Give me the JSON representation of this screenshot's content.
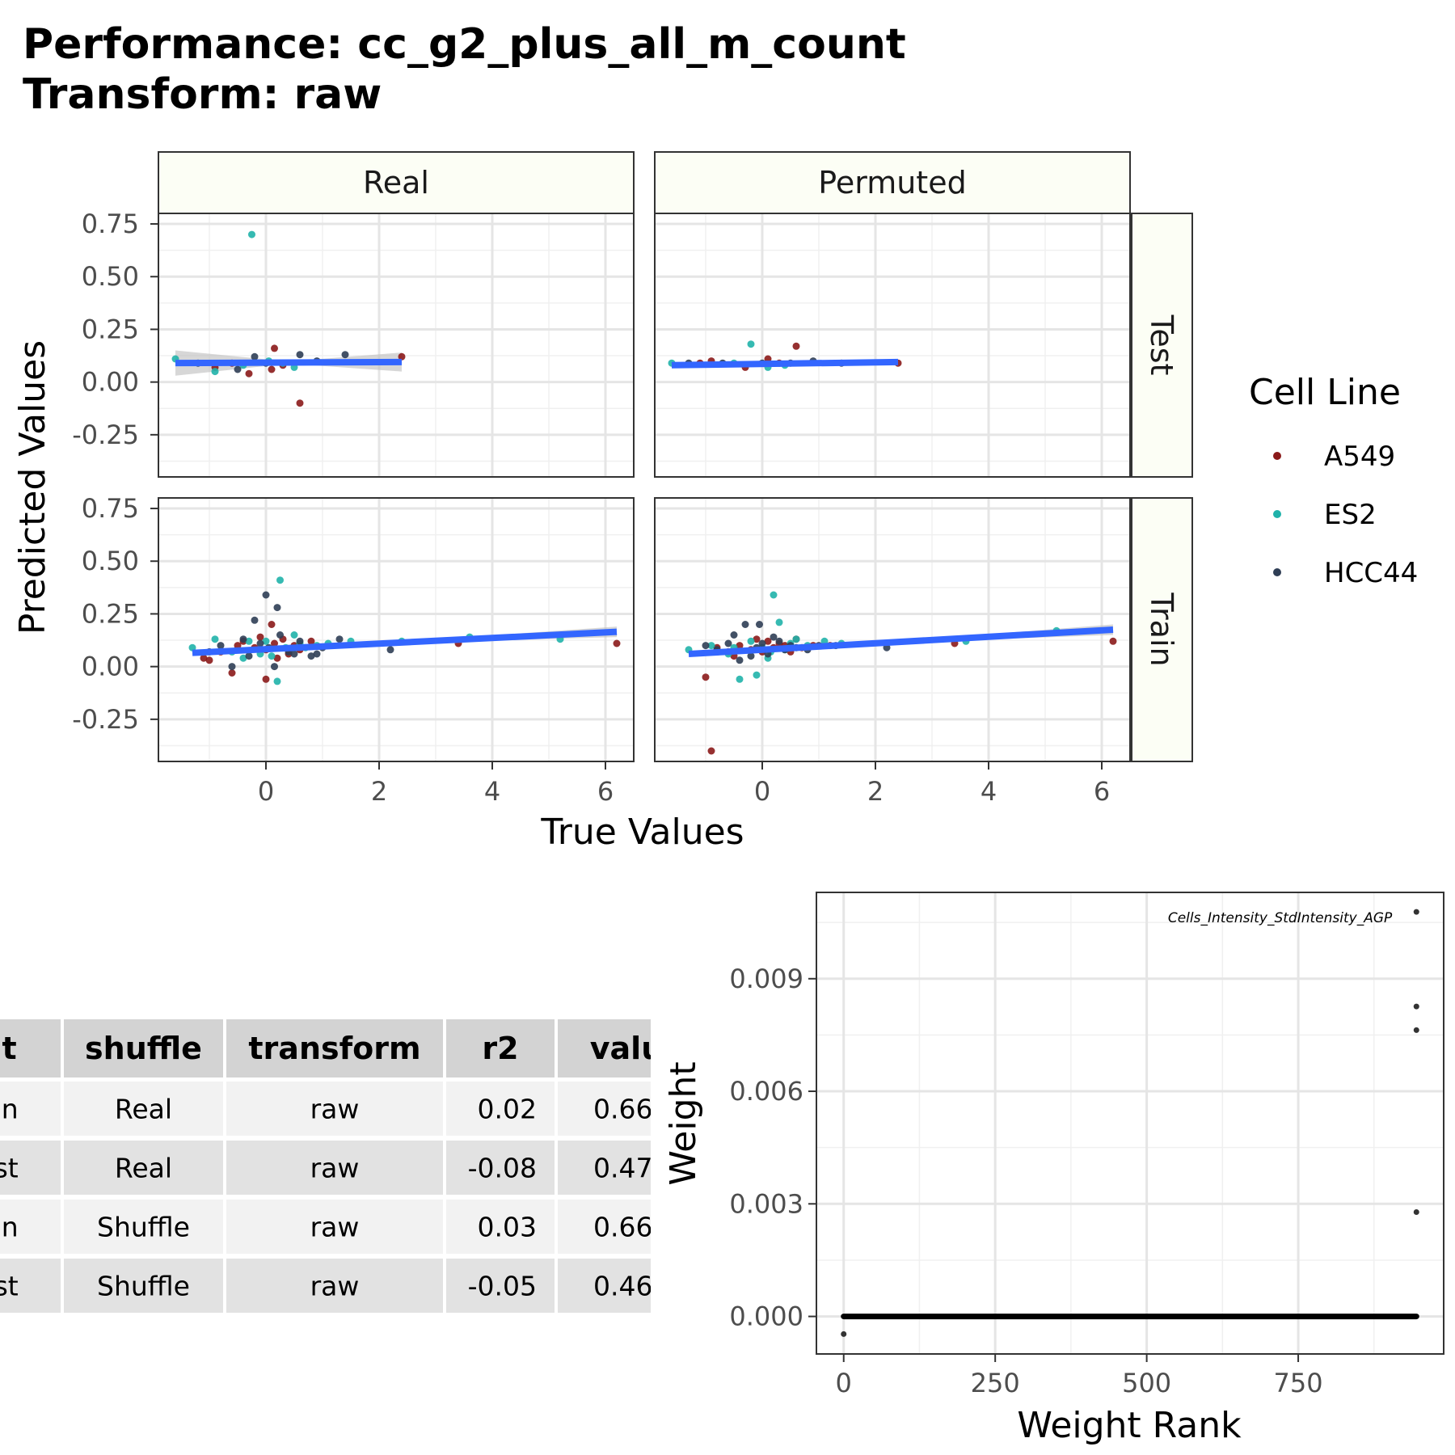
{
  "title_line1": "Performance: cc_g2_plus_all_m_count",
  "title_line2": "Transform: raw",
  "chart_data": [
    {
      "type": "scatter",
      "facets": {
        "columns": [
          "Real",
          "Permuted"
        ],
        "rows": [
          "Test",
          "Train"
        ]
      },
      "xlabel": "True Values",
      "ylabel": "Predicted Values",
      "x_ticks": [
        0,
        2,
        4,
        6
      ],
      "y_ticks": [
        0.75,
        0.5,
        0.25,
        0.0,
        -0.25
      ],
      "y_tick_labels": [
        "0.75",
        "0.50",
        "0.25",
        "0.00",
        "-0.25"
      ],
      "xlim": [
        -1.9,
        6.5
      ],
      "ylim": [
        -0.45,
        0.8
      ],
      "legend": {
        "title": "Cell Line",
        "position": "right",
        "entries": [
          {
            "name": "A549",
            "color": "#8B1A1A"
          },
          {
            "name": "ES2",
            "color": "#20B2AA"
          },
          {
            "name": "HCC44",
            "color": "#2F3E55"
          }
        ]
      },
      "fit_line_color": "#3366FF",
      "confidence_band_color": "#BDBDBD",
      "panels": [
        {
          "shuffle": "Real",
          "split": "Test",
          "fit": {
            "x": [
              -1.6,
              2.4
            ],
            "y": [
              0.09,
              0.095
            ]
          },
          "band_halfwidth": [
            0.06,
            0.005,
            0.045
          ],
          "points": {
            "A549": [
              [
                -0.9,
                0.07
              ],
              [
                -0.3,
                0.04
              ],
              [
                0.1,
                0.06
              ],
              [
                0.15,
                0.16
              ],
              [
                0.6,
                -0.1
              ],
              [
                0.3,
                0.08
              ],
              [
                2.4,
                0.12
              ],
              [
                -0.6,
                0.09
              ]
            ],
            "ES2": [
              [
                -0.25,
                0.7
              ],
              [
                -1.6,
                0.11
              ],
              [
                -0.9,
                0.05
              ],
              [
                0.3,
                0.09
              ],
              [
                0.5,
                0.07
              ],
              [
                0.05,
                0.1
              ],
              [
                -0.4,
                0.08
              ]
            ],
            "HCC44": [
              [
                -0.2,
                0.12
              ],
              [
                0.6,
                0.13
              ],
              [
                1.4,
                0.13
              ],
              [
                -0.5,
                0.06
              ],
              [
                0.0,
                0.09
              ],
              [
                0.9,
                0.1
              ],
              [
                -1.2,
                0.09
              ]
            ]
          }
        },
        {
          "shuffle": "Permuted",
          "split": "Test",
          "fit": {
            "x": [
              -1.6,
              2.4
            ],
            "y": [
              0.08,
              0.095
            ]
          },
          "band_halfwidth": [
            0.012,
            0.003,
            0.01
          ],
          "points": {
            "A549": [
              [
                -0.9,
                0.1
              ],
              [
                -0.3,
                0.07
              ],
              [
                0.1,
                0.11
              ],
              [
                0.6,
                0.17
              ],
              [
                2.4,
                0.09
              ],
              [
                -1.1,
                0.09
              ],
              [
                0.3,
                0.09
              ]
            ],
            "ES2": [
              [
                -0.2,
                0.18
              ],
              [
                -1.6,
                0.09
              ],
              [
                0.1,
                0.07
              ],
              [
                -0.5,
                0.09
              ],
              [
                0.4,
                0.08
              ]
            ],
            "HCC44": [
              [
                -0.7,
                0.09
              ],
              [
                0.0,
                0.09
              ],
              [
                1.4,
                0.09
              ],
              [
                0.5,
                0.09
              ],
              [
                -1.3,
                0.09
              ],
              [
                0.9,
                0.1
              ]
            ]
          }
        },
        {
          "shuffle": "Real",
          "split": "Train",
          "fit": {
            "x": [
              -1.3,
              6.2
            ],
            "y": [
              0.065,
              0.165
            ]
          },
          "band_halfwidth": [
            0.01,
            0.004,
            0.025
          ],
          "points": {
            "A549": [
              [
                -1.0,
                0.03
              ],
              [
                -0.6,
                -0.03
              ],
              [
                0.0,
                -0.06
              ],
              [
                0.1,
                0.2
              ],
              [
                -0.4,
                0.12
              ],
              [
                0.2,
                0.04
              ],
              [
                0.5,
                0.1
              ],
              [
                -0.8,
                0.07
              ],
              [
                0.3,
                0.13
              ],
              [
                -0.2,
                0.09
              ],
              [
                0.8,
                0.12
              ],
              [
                3.4,
                0.11
              ],
              [
                6.2,
                0.11
              ],
              [
                -1.1,
                0.04
              ],
              [
                0.0,
                0.08
              ],
              [
                0.6,
                0.08
              ],
              [
                -0.5,
                0.1
              ],
              [
                0.15,
                0.11
              ],
              [
                0.4,
                0.06
              ],
              [
                -0.1,
                0.14
              ]
            ],
            "ES2": [
              [
                -1.3,
                0.09
              ],
              [
                -0.9,
                0.13
              ],
              [
                0.25,
                0.41
              ],
              [
                0.2,
                -0.07
              ],
              [
                0.5,
                0.15
              ],
              [
                -0.3,
                0.12
              ],
              [
                0.1,
                0.05
              ],
              [
                0.7,
                0.09
              ],
              [
                1.1,
                0.11
              ],
              [
                2.4,
                0.12
              ],
              [
                3.6,
                0.14
              ],
              [
                5.2,
                0.13
              ],
              [
                -0.6,
                0.07
              ],
              [
                0.35,
                0.09
              ],
              [
                -0.1,
                0.06
              ],
              [
                0.9,
                0.1
              ],
              [
                1.5,
                0.12
              ],
              [
                0.0,
                0.12
              ],
              [
                -0.4,
                0.04
              ],
              [
                0.6,
                0.11
              ]
            ],
            "HCC44": [
              [
                0.0,
                0.34
              ],
              [
                0.2,
                0.28
              ],
              [
                -0.2,
                0.22
              ],
              [
                -0.6,
                0.0
              ],
              [
                0.15,
                0.0
              ],
              [
                0.9,
                0.06
              ],
              [
                1.3,
                0.13
              ],
              [
                2.2,
                0.08
              ],
              [
                -0.8,
                0.1
              ],
              [
                0.4,
                0.07
              ],
              [
                -0.3,
                0.05
              ],
              [
                0.6,
                0.12
              ],
              [
                1.0,
                0.09
              ],
              [
                -1.0,
                0.07
              ],
              [
                0.25,
                0.15
              ],
              [
                -0.1,
                0.11
              ],
              [
                0.8,
                0.05
              ],
              [
                0.05,
                0.09
              ],
              [
                -0.4,
                0.13
              ],
              [
                0.5,
                0.06
              ]
            ]
          }
        },
        {
          "shuffle": "Permuted",
          "split": "Train",
          "fit": {
            "x": [
              -1.3,
              6.2
            ],
            "y": [
              0.06,
              0.175
            ]
          },
          "band_halfwidth": [
            0.01,
            0.004,
            0.025
          ],
          "points": {
            "A549": [
              [
                -0.9,
                -0.4
              ],
              [
                -1.0,
                -0.05
              ],
              [
                -0.6,
                0.07
              ],
              [
                0.1,
                0.12
              ],
              [
                0.4,
                0.1
              ],
              [
                -0.2,
                0.08
              ],
              [
                0.6,
                0.13
              ],
              [
                0.9,
                0.1
              ],
              [
                3.4,
                0.11
              ],
              [
                6.2,
                0.12
              ],
              [
                -0.4,
                0.1
              ],
              [
                0.2,
                0.09
              ],
              [
                -0.8,
                0.09
              ],
              [
                0.0,
                0.07
              ],
              [
                0.5,
                0.07
              ],
              [
                -0.1,
                0.13
              ],
              [
                0.3,
                0.11
              ],
              [
                1.2,
                0.1
              ],
              [
                -0.5,
                0.05
              ],
              [
                0.7,
                0.09
              ]
            ],
            "ES2": [
              [
                0.2,
                0.34
              ],
              [
                0.3,
                0.21
              ],
              [
                -0.4,
                -0.06
              ],
              [
                -0.1,
                -0.04
              ],
              [
                -1.3,
                0.08
              ],
              [
                -0.9,
                0.1
              ],
              [
                0.5,
                0.11
              ],
              [
                1.1,
                0.12
              ],
              [
                3.6,
                0.12
              ],
              [
                5.2,
                0.17
              ],
              [
                0.1,
                0.04
              ],
              [
                -0.6,
                0.06
              ],
              [
                0.8,
                0.1
              ],
              [
                0.0,
                0.09
              ],
              [
                1.4,
                0.11
              ],
              [
                -0.2,
                0.12
              ],
              [
                0.4,
                0.08
              ],
              [
                0.6,
                0.13
              ],
              [
                -0.5,
                0.09
              ],
              [
                0.15,
                0.07
              ]
            ],
            "HCC44": [
              [
                -0.3,
                0.2
              ],
              [
                -0.05,
                0.2
              ],
              [
                -0.5,
                0.15
              ],
              [
                0.2,
                0.14
              ],
              [
                -0.8,
                0.08
              ],
              [
                0.4,
                0.08
              ],
              [
                -0.2,
                0.05
              ],
              [
                1.0,
                0.1
              ],
              [
                2.2,
                0.09
              ],
              [
                -1.0,
                0.1
              ],
              [
                0.0,
                0.11
              ],
              [
                0.6,
                0.09
              ],
              [
                -0.4,
                0.03
              ],
              [
                0.3,
                0.12
              ],
              [
                0.8,
                0.08
              ],
              [
                -0.6,
                0.11
              ],
              [
                0.1,
                0.06
              ],
              [
                1.3,
                0.1
              ],
              [
                -0.1,
                0.09
              ],
              [
                0.5,
                0.1
              ]
            ]
          }
        }
      ]
    },
    {
      "type": "table",
      "columns": [
        "fit",
        "shuffle",
        "transform",
        "r2",
        "valu"
      ],
      "rows": [
        [
          "ain",
          "Real",
          "raw",
          "0.02",
          "0.66"
        ],
        [
          "est",
          "Real",
          "raw",
          "-0.08",
          "0.47"
        ],
        [
          "ain",
          "Shuffle",
          "raw",
          "0.03",
          "0.66"
        ],
        [
          "est",
          "Shuffle",
          "raw",
          "-0.05",
          "0.46"
        ]
      ],
      "header_bg": "#D3D3D3",
      "row_bg": [
        "#F2F2F2",
        "#E2E2E2"
      ]
    },
    {
      "type": "scatter",
      "xlabel": "Weight Rank",
      "ylabel": "Weight",
      "x_ticks": [
        0,
        250,
        500,
        750
      ],
      "y_ticks": [
        0.0,
        0.003,
        0.006,
        0.009
      ],
      "y_tick_labels": [
        "0.000",
        "0.003",
        "0.006",
        "0.009"
      ],
      "xlim": [
        -45,
        990
      ],
      "ylim": [
        -0.001,
        0.0113
      ],
      "dense_zero_segment": {
        "x": [
          0,
          945
        ],
        "y": 0.0
      },
      "points": [
        [
          0,
          -0.00047
        ],
        [
          945,
          0.01078
        ],
        [
          945,
          0.00826
        ],
        [
          945,
          0.00763
        ],
        [
          945,
          0.00278
        ]
      ],
      "annotation": {
        "text": "Cells_Intensity_StdIntensity_AGP",
        "x": 720,
        "y": 0.01063
      }
    }
  ]
}
